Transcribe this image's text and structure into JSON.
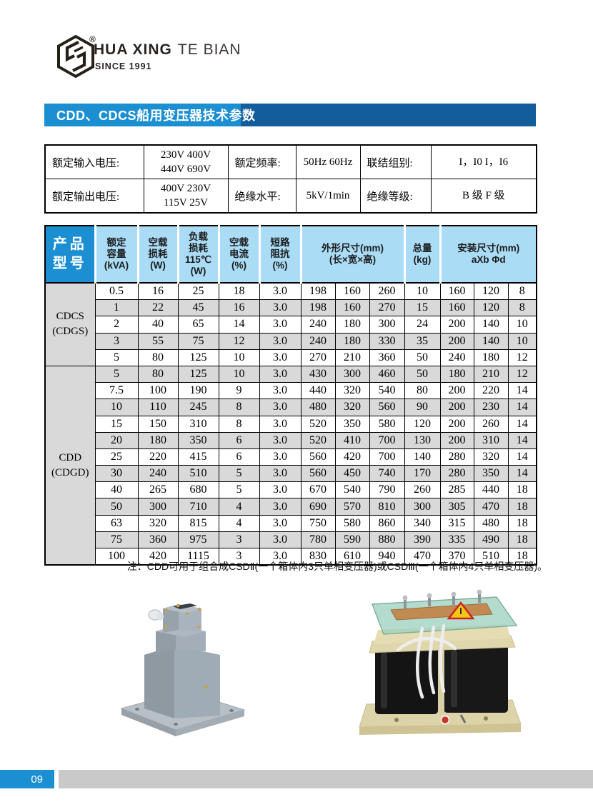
{
  "logo": {
    "registered": "®",
    "brand_bold": "HUA XING",
    "brand_light": "TE BIAN",
    "since": "SINCE 1991"
  },
  "title_bar": {
    "title": "CDD、CDCS船用变压器技术参数"
  },
  "info_table": {
    "row1": {
      "label_input": "额定输入电压:",
      "value_input": "230V 400V\n440V 690V",
      "label_freq": "额定频率:",
      "value_freq": "50Hz 60Hz",
      "label_vector": "联结组别:",
      "value_vector": "I，I0  I，I6"
    },
    "row2": {
      "label_output": "额定输出电压:",
      "value_output": "400V 230V\n115V 25V",
      "label_ins_level": "绝缘水平:",
      "value_ins_level": "5kV/1min",
      "label_ins_class": "绝缘等级:",
      "value_ins_class": "B 级  F 级"
    }
  },
  "main_table": {
    "header": {
      "product": "产品\n型号",
      "capacity": "额定\n容量\n(kVA)",
      "noload_loss": "空载\n损耗\n(W)",
      "load_loss": "负载\n损耗\n115℃\n(W)",
      "noload_current": "空载\n电流\n(%)",
      "impedance": "短路\n阻抗\n(%)",
      "dimensions": "外形尺寸(mm)\n(长×宽×高)",
      "weight": "总量\n(kg)",
      "mounting": "安装尺寸(mm)\naXb   Φd"
    },
    "groups": [
      {
        "model": "CDCS\n(CDGS)",
        "rows": [
          [
            "0.5",
            "16",
            "25",
            "18",
            "3.0",
            "198",
            "160",
            "260",
            "10",
            "160",
            "120",
            "8"
          ],
          [
            "1",
            "22",
            "45",
            "16",
            "3.0",
            "198",
            "160",
            "270",
            "15",
            "160",
            "120",
            "8"
          ],
          [
            "2",
            "40",
            "65",
            "14",
            "3.0",
            "240",
            "180",
            "300",
            "24",
            "200",
            "140",
            "10"
          ],
          [
            "3",
            "55",
            "75",
            "12",
            "3.0",
            "240",
            "180",
            "330",
            "35",
            "200",
            "140",
            "10"
          ],
          [
            "5",
            "80",
            "125",
            "10",
            "3.0",
            "270",
            "210",
            "360",
            "50",
            "240",
            "180",
            "12"
          ]
        ]
      },
      {
        "model": "CDD\n(CDGD)",
        "rows": [
          [
            "5",
            "80",
            "125",
            "10",
            "3.0",
            "430",
            "300",
            "460",
            "50",
            "180",
            "210",
            "12"
          ],
          [
            "7.5",
            "100",
            "190",
            "9",
            "3.0",
            "440",
            "320",
            "540",
            "80",
            "200",
            "220",
            "14"
          ],
          [
            "10",
            "110",
            "245",
            "8",
            "3.0",
            "480",
            "320",
            "560",
            "90",
            "200",
            "230",
            "14"
          ],
          [
            "15",
            "150",
            "310",
            "8",
            "3.0",
            "520",
            "350",
            "580",
            "120",
            "200",
            "260",
            "14"
          ],
          [
            "20",
            "180",
            "350",
            "6",
            "3.0",
            "520",
            "410",
            "700",
            "130",
            "200",
            "310",
            "14"
          ],
          [
            "25",
            "220",
            "415",
            "6",
            "3.0",
            "560",
            "420",
            "700",
            "140",
            "280",
            "320",
            "14"
          ],
          [
            "30",
            "240",
            "510",
            "5",
            "3.0",
            "560",
            "450",
            "740",
            "170",
            "280",
            "350",
            "14"
          ],
          [
            "40",
            "265",
            "680",
            "5",
            "3.0",
            "670",
            "540",
            "790",
            "260",
            "285",
            "440",
            "18"
          ],
          [
            "50",
            "300",
            "710",
            "4",
            "3.0",
            "690",
            "570",
            "810",
            "300",
            "305",
            "470",
            "18"
          ],
          [
            "63",
            "320",
            "815",
            "4",
            "3.0",
            "750",
            "580",
            "860",
            "340",
            "315",
            "480",
            "18"
          ],
          [
            "75",
            "360",
            "975",
            "3",
            "3.0",
            "780",
            "590",
            "880",
            "390",
            "335",
            "490",
            "18"
          ],
          [
            "100",
            "420",
            "1115",
            "3",
            "3.0",
            "830",
            "610",
            "940",
            "470",
            "370",
            "510",
            "18"
          ]
        ]
      }
    ]
  },
  "note": "注：CDD可用于组合成CSDⅡ(一个箱体内3只单相变压器)或CSDⅢ(一个箱体内4只单相变压器)。",
  "footer": {
    "page_number": "09"
  },
  "colors": {
    "accent_blue": "#1b8fd2",
    "dark_blue": "#135d9c",
    "header_cell_blue": "#aadcf6",
    "row_shade": "#d9d9d9",
    "footer_gray": "#c9c9c9"
  }
}
